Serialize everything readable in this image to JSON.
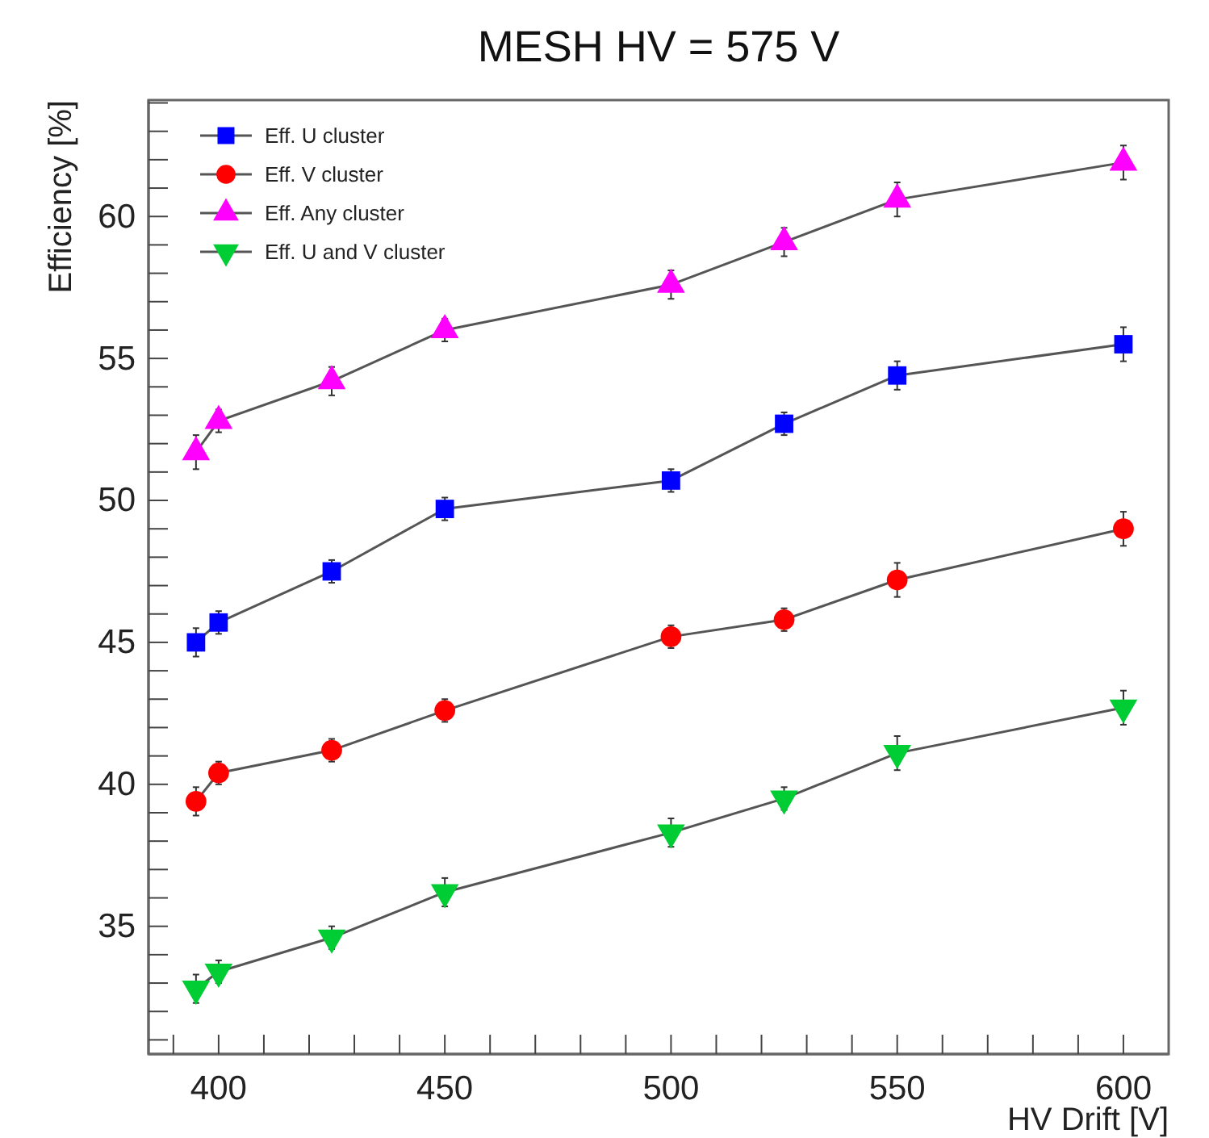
{
  "chart_data": {
    "type": "line",
    "title": "MESH HV = 575 V",
    "xlabel": "HV Drift [V]",
    "ylabel": "Efficiency [%]",
    "x": [
      395,
      400,
      425,
      450,
      500,
      525,
      550,
      600
    ],
    "xlim": [
      384.5,
      610
    ],
    "xticks": [
      {
        "value": 390,
        "label": null
      },
      400,
      {
        "value": 410,
        "label": null
      },
      {
        "value": 420,
        "label": null
      },
      {
        "value": 430,
        "label": null
      },
      {
        "value": 440,
        "label": null
      },
      450,
      {
        "value": 460,
        "label": null
      },
      {
        "value": 470,
        "label": null
      },
      {
        "value": 480,
        "label": null
      },
      {
        "value": 490,
        "label": null
      },
      500,
      {
        "value": 510,
        "label": null
      },
      {
        "value": 520,
        "label": null
      },
      {
        "value": 530,
        "label": null
      },
      {
        "value": 540,
        "label": null
      },
      550,
      {
        "value": 560,
        "label": null
      },
      {
        "value": 570,
        "label": null
      },
      {
        "value": 580,
        "label": null
      },
      {
        "value": 590,
        "label": null
      },
      600
    ],
    "ylim": [
      30.5,
      64.1
    ],
    "yticks": [
      {
        "value": 31,
        "label": null
      },
      {
        "value": 32,
        "label": null
      },
      {
        "value": 33,
        "label": null
      },
      {
        "value": 34,
        "label": null
      },
      35,
      {
        "value": 36,
        "label": null
      },
      {
        "value": 37,
        "label": null
      },
      {
        "value": 38,
        "label": null
      },
      {
        "value": 39,
        "label": null
      },
      40,
      {
        "value": 41,
        "label": null
      },
      {
        "value": 42,
        "label": null
      },
      {
        "value": 43,
        "label": null
      },
      {
        "value": 44,
        "label": null
      },
      45,
      {
        "value": 46,
        "label": null
      },
      {
        "value": 47,
        "label": null
      },
      {
        "value": 48,
        "label": null
      },
      {
        "value": 49,
        "label": null
      },
      50,
      {
        "value": 51,
        "label": null
      },
      {
        "value": 52,
        "label": null
      },
      {
        "value": 53,
        "label": null
      },
      {
        "value": 54,
        "label": null
      },
      55,
      {
        "value": 56,
        "label": null
      },
      {
        "value": 57,
        "label": null
      },
      {
        "value": 58,
        "label": null
      },
      {
        "value": 59,
        "label": null
      },
      60,
      {
        "value": 61,
        "label": null
      },
      {
        "value": 62,
        "label": null
      },
      {
        "value": 63,
        "label": null
      },
      {
        "value": 64,
        "label": null
      }
    ],
    "grid": false,
    "legend": "top left",
    "line_style": "solid",
    "series": [
      {
        "name": "Eff. U cluster",
        "color": "#0000ff",
        "marker": "square",
        "values": [
          45.0,
          45.7,
          47.5,
          49.7,
          50.7,
          52.7,
          54.4,
          55.5
        ],
        "errors": [
          0.5,
          0.4,
          0.4,
          0.4,
          0.4,
          0.4,
          0.5,
          0.6
        ]
      },
      {
        "name": "Eff. V cluster",
        "color": "#ff0000",
        "marker": "circle",
        "values": [
          39.4,
          40.4,
          41.2,
          42.6,
          45.2,
          45.8,
          47.2,
          49.0
        ],
        "errors": [
          0.5,
          0.4,
          0.4,
          0.4,
          0.4,
          0.4,
          0.6,
          0.6
        ]
      },
      {
        "name": "Eff. Any cluster",
        "color": "#ff00ff",
        "marker": "triangle",
        "values": [
          51.7,
          52.8,
          54.2,
          56.0,
          57.6,
          59.1,
          60.6,
          61.9
        ],
        "errors": [
          0.6,
          0.4,
          0.5,
          0.4,
          0.5,
          0.5,
          0.6,
          0.6
        ]
      },
      {
        "name": "Eff. U and V cluster",
        "color": "#00cc33",
        "marker": "triangle-down",
        "values": [
          32.8,
          33.4,
          34.6,
          36.2,
          38.3,
          39.5,
          41.1,
          42.7
        ],
        "errors": [
          0.5,
          0.4,
          0.4,
          0.5,
          0.5,
          0.4,
          0.6,
          0.6
        ]
      }
    ]
  }
}
